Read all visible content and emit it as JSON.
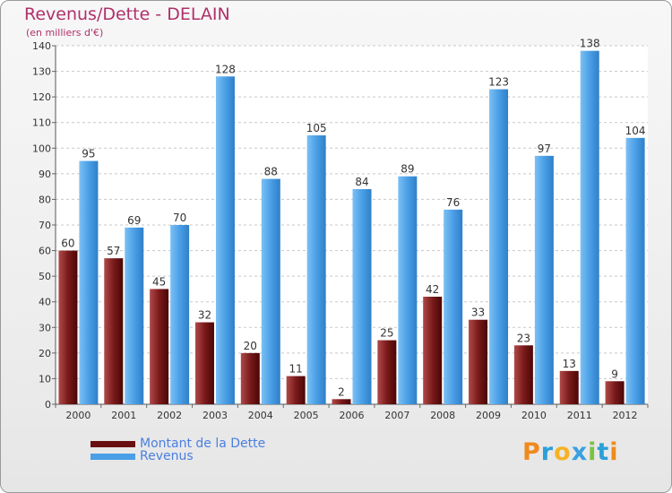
{
  "header": {
    "title": "Revenus/Dette - DELAIN",
    "subtitle": "(en milliers d'€)"
  },
  "chart_data": {
    "type": "bar",
    "title": "Revenus/Dette - DELAIN",
    "ylabel": "(en milliers d'€)",
    "xlabel": "",
    "ylim": [
      0,
      140
    ],
    "y_ticks": [
      0,
      10,
      20,
      30,
      40,
      50,
      60,
      70,
      80,
      90,
      100,
      110,
      120,
      130,
      140
    ],
    "grid": true,
    "legend_position": "bottom-left",
    "categories": [
      "2000",
      "2001",
      "2002",
      "2003",
      "2004",
      "2005",
      "2006",
      "2007",
      "2008",
      "2009",
      "2010",
      "2011",
      "2012"
    ],
    "series": [
      {
        "name": "Montant de la Dette",
        "color": "#7a1a1a",
        "values": [
          60,
          57,
          45,
          32,
          20,
          11,
          2,
          25,
          42,
          33,
          23,
          13,
          9
        ]
      },
      {
        "name": "Revenus",
        "color": "#4a9fe6",
        "values": [
          95,
          69,
          70,
          128,
          88,
          105,
          84,
          89,
          76,
          123,
          97,
          138,
          104
        ]
      }
    ]
  },
  "legend": {
    "items": [
      {
        "label": "Montant de la Dette",
        "color": "#6a0f0f"
      },
      {
        "label": "Revenus",
        "color": "#4a9fe6"
      }
    ]
  },
  "brand": {
    "letters": [
      "P",
      "r",
      "o",
      "x",
      "i",
      "t",
      "i"
    ],
    "colors": [
      "#f08a1c",
      "#2a9fd8",
      "#f5b324",
      "#3aa0e0",
      "#7cc242",
      "#2a9fd8",
      "#f08a1c"
    ]
  }
}
